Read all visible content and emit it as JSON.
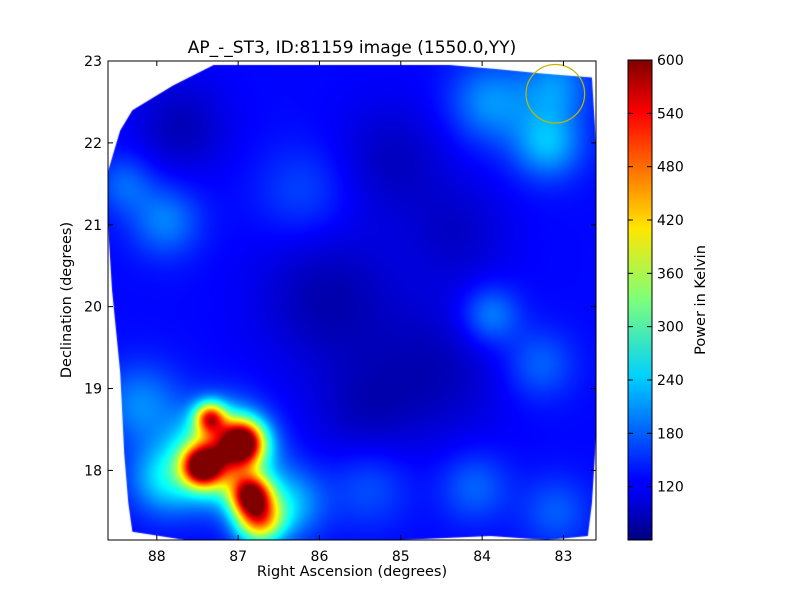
{
  "chart_data": {
    "type": "heatmap",
    "title": "AP_-_ST3, ID:81159 image (1550.0,YY)",
    "xlabel": "Right Ascension (degrees)",
    "ylabel": "Declination (degrees)",
    "xlim": [
      88.6,
      82.6
    ],
    "ylim": [
      17.15,
      23.0
    ],
    "x_ticks": [
      88,
      87,
      86,
      85,
      84,
      83
    ],
    "y_ticks": [
      18,
      19,
      20,
      21,
      22,
      23
    ],
    "colorbar": {
      "label": "Power in Kelvin",
      "colormap": "jet",
      "range": [
        60,
        600
      ],
      "ticks": [
        120,
        180,
        240,
        300,
        360,
        420,
        480,
        540,
        600
      ]
    },
    "coverage_outline": [
      [
        88.3,
        17.25
      ],
      [
        87.65,
        17.15
      ],
      [
        87.3,
        17.1
      ],
      [
        86.6,
        17.15
      ],
      [
        85.0,
        17.15
      ],
      [
        83.9,
        17.2
      ],
      [
        83.2,
        17.15
      ],
      [
        82.7,
        17.2
      ],
      [
        82.65,
        17.6
      ],
      [
        82.6,
        18.4
      ],
      [
        82.6,
        19.5
      ],
      [
        82.6,
        20.8
      ],
      [
        82.6,
        22.0
      ],
      [
        82.65,
        22.8
      ],
      [
        83.3,
        22.85
      ],
      [
        83.8,
        22.9
      ],
      [
        84.4,
        22.95
      ],
      [
        85.5,
        22.95
      ],
      [
        86.8,
        22.95
      ],
      [
        87.3,
        22.95
      ],
      [
        87.8,
        22.7
      ],
      [
        88.3,
        22.4
      ],
      [
        88.45,
        22.15
      ],
      [
        88.6,
        21.65
      ],
      [
        88.6,
        21.0
      ],
      [
        88.55,
        20.2
      ],
      [
        88.45,
        19.2
      ],
      [
        88.4,
        18.2
      ],
      [
        88.35,
        17.6
      ]
    ],
    "background_level": 130,
    "emission_components": [
      {
        "ra": 86.95,
        "dec": 18.35,
        "peak": 520,
        "sigma": 0.18
      },
      {
        "ra": 87.45,
        "dec": 18.05,
        "peak": 500,
        "sigma": 0.16
      },
      {
        "ra": 86.85,
        "dec": 17.7,
        "peak": 510,
        "sigma": 0.17
      },
      {
        "ra": 87.35,
        "dec": 18.65,
        "peak": 420,
        "sigma": 0.13
      },
      {
        "ra": 86.75,
        "dec": 17.4,
        "peak": 420,
        "sigma": 0.2
      },
      {
        "ra": 87.2,
        "dec": 18.2,
        "peak": 460,
        "sigma": 0.35
      },
      {
        "ra": 87.9,
        "dec": 17.9,
        "peak": 240,
        "sigma": 0.3
      },
      {
        "ra": 86.4,
        "dec": 17.6,
        "peak": 230,
        "sigma": 0.3
      },
      {
        "ra": 88.2,
        "dec": 18.8,
        "peak": 200,
        "sigma": 0.35
      },
      {
        "ra": 87.9,
        "dec": 21.05,
        "peak": 195,
        "sigma": 0.3
      },
      {
        "ra": 88.4,
        "dec": 21.5,
        "peak": 180,
        "sigma": 0.25
      },
      {
        "ra": 83.9,
        "dec": 22.5,
        "peak": 205,
        "sigma": 0.35
      },
      {
        "ra": 83.2,
        "dec": 22.0,
        "peak": 225,
        "sigma": 0.3
      },
      {
        "ra": 83.1,
        "dec": 22.7,
        "peak": 200,
        "sigma": 0.3
      },
      {
        "ra": 83.9,
        "dec": 19.9,
        "peak": 200,
        "sigma": 0.25
      },
      {
        "ra": 83.3,
        "dec": 19.3,
        "peak": 180,
        "sigma": 0.3
      },
      {
        "ra": 84.1,
        "dec": 17.8,
        "peak": 180,
        "sigma": 0.3
      },
      {
        "ra": 83.1,
        "dec": 17.5,
        "peak": 175,
        "sigma": 0.3
      },
      {
        "ra": 85.4,
        "dec": 17.8,
        "peak": 170,
        "sigma": 0.35
      },
      {
        "ra": 86.2,
        "dec": 21.4,
        "peak": 165,
        "sigma": 0.4
      }
    ],
    "cold_components": [
      {
        "ra": 85.9,
        "dec": 20.1,
        "depth": 45,
        "sigma": 0.6
      },
      {
        "ra": 84.6,
        "dec": 19.2,
        "depth": 40,
        "sigma": 0.6
      },
      {
        "ra": 87.7,
        "dec": 22.2,
        "depth": 40,
        "sigma": 0.4
      },
      {
        "ra": 85.1,
        "dec": 21.8,
        "depth": 35,
        "sigma": 0.5
      },
      {
        "ra": 85.5,
        "dec": 18.7,
        "depth": 30,
        "sigma": 0.45
      },
      {
        "ra": 84.3,
        "dec": 20.9,
        "depth": 30,
        "sigma": 0.45
      }
    ],
    "marker_circle": {
      "ra": 83.1,
      "dec": 22.6,
      "radius_deg": 0.36,
      "color": "#c8b400"
    }
  }
}
